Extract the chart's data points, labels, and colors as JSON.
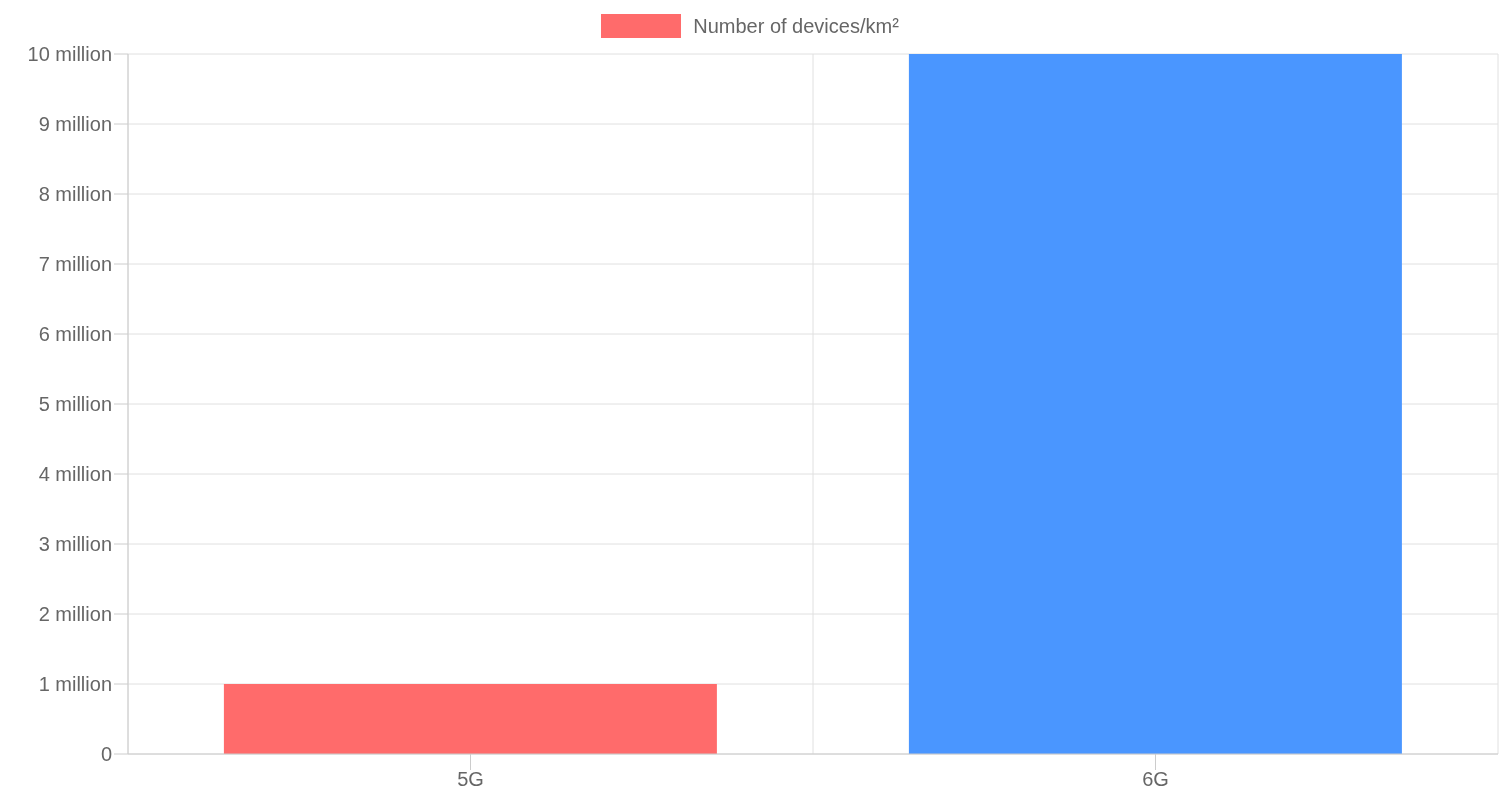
{
  "chart_data": {
    "type": "bar",
    "categories": [
      "5G",
      "6G"
    ],
    "series": [
      {
        "name": "Number of devices/km²",
        "color": "#ff6b6b",
        "colors": [
          "#ff6b6b",
          "#4a96ff"
        ],
        "values": [
          1000000,
          10000000
        ]
      }
    ],
    "ylim": [
      0,
      10000000
    ],
    "yticks": [
      0,
      {
        "value": 1000000,
        "label": "1 million"
      },
      {
        "value": 2000000,
        "label": "2 million"
      },
      {
        "value": 3000000,
        "label": "3 million"
      },
      {
        "value": 4000000,
        "label": "4 million"
      },
      {
        "value": 5000000,
        "label": "5 million"
      },
      {
        "value": 6000000,
        "label": "6 million"
      },
      {
        "value": 7000000,
        "label": "7 million"
      },
      {
        "value": 8000000,
        "label": "8 million"
      },
      {
        "value": 9000000,
        "label": "9 million"
      },
      {
        "value": 10000000,
        "label": "10 million"
      }
    ],
    "grid": true,
    "legend": "top"
  }
}
